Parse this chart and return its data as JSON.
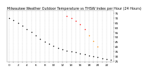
{
  "title": "Milwaukee Weather Outdoor Temperature vs THSW Index per Hour (24 Hours)",
  "hours": [
    0,
    1,
    2,
    3,
    4,
    5,
    6,
    7,
    8,
    9,
    10,
    11,
    12,
    13,
    14,
    15,
    16,
    17,
    18,
    19,
    20,
    21,
    22,
    23
  ],
  "temp": [
    70,
    68,
    65,
    62,
    58,
    55,
    52,
    48,
    45,
    43,
    41,
    39,
    37,
    36,
    35,
    34,
    33,
    32,
    31,
    30,
    29,
    28,
    27,
    26
  ],
  "thsw": [
    null,
    null,
    null,
    null,
    null,
    null,
    null,
    null,
    null,
    null,
    null,
    null,
    null,
    72,
    70,
    67,
    63,
    58,
    52,
    46,
    40,
    null,
    null,
    null
  ],
  "temp_color": "#000000",
  "thsw_color_low": "#ff8800",
  "thsw_color_high": "#ff0000",
  "grid_color": "#bbbbbb",
  "bg_color": "#ffffff",
  "ylim": [
    24,
    78
  ],
  "ytick_right_vals": [
    25,
    30,
    35,
    40,
    45,
    50,
    55,
    60,
    65,
    70,
    75
  ],
  "xtick_labels": [
    "0",
    "",
    "2",
    "",
    "4",
    "",
    "6",
    "",
    "8",
    "",
    "10",
    "",
    "12",
    "",
    "14",
    "",
    "16",
    "",
    "18",
    "",
    "20",
    "",
    "22",
    ""
  ],
  "title_fontsize": 3.5,
  "tick_fontsize": 3.0,
  "marker_size": 1.2
}
